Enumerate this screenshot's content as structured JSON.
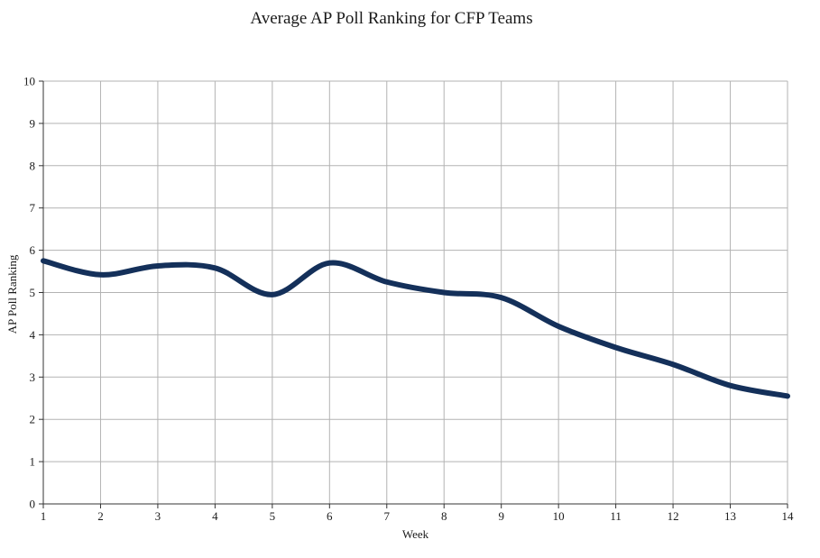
{
  "chart_data": {
    "type": "line",
    "title": "Average AP Poll Ranking for CFP Teams",
    "xlabel": "Week",
    "ylabel": "AP Poll Ranking",
    "x": [
      1,
      2,
      3,
      4,
      5,
      6,
      7,
      8,
      9,
      10,
      11,
      12,
      13,
      14
    ],
    "series": [
      {
        "values": [
          5.75,
          5.42,
          5.63,
          5.58,
          4.95,
          5.7,
          5.25,
          5.0,
          4.88,
          4.2,
          3.7,
          3.3,
          2.8,
          2.55
        ],
        "color": "#14305a"
      }
    ],
    "xlim": [
      1,
      14
    ],
    "ylim": [
      0,
      10
    ],
    "x_ticks": [
      "1",
      "2",
      "3",
      "4",
      "5",
      "6",
      "7",
      "8",
      "9",
      "10",
      "11",
      "12",
      "13",
      "14"
    ],
    "y_ticks": [
      "0",
      "1",
      "2",
      "3",
      "4",
      "5",
      "6",
      "7",
      "8",
      "9",
      "10"
    ],
    "grid": true,
    "grid_color": "#b3b3b3",
    "axis_color": "#333333"
  }
}
